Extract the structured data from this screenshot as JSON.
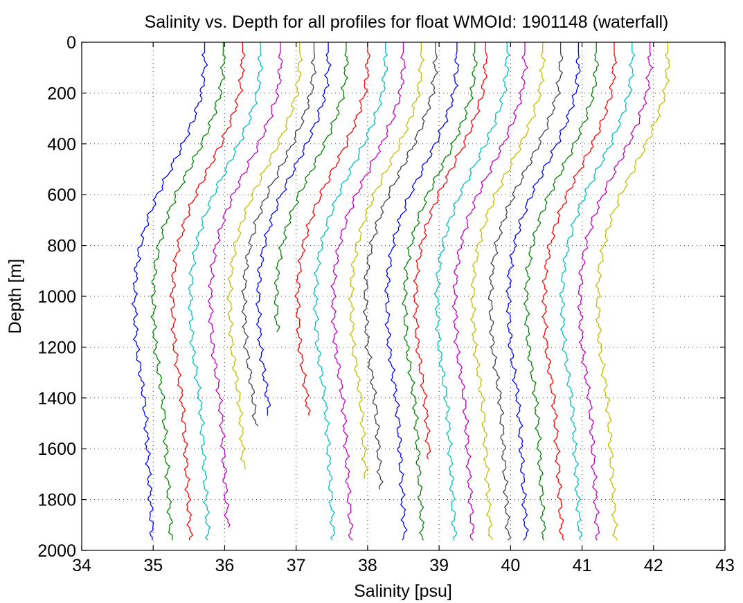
{
  "chart_data": {
    "type": "line",
    "title": "Salinity vs. Depth for all profiles for float WMOId: 1901148 (waterfall)",
    "xlabel": "Salinity [psu]",
    "ylabel": "Depth [m]",
    "xlim": [
      34,
      43
    ],
    "ylim": [
      0,
      2000
    ],
    "y_reversed": true,
    "grid": true,
    "x_ticks": [
      "34",
      "35",
      "36",
      "37",
      "38",
      "39",
      "40",
      "41",
      "42",
      "43"
    ],
    "y_ticks": [
      "0",
      "200",
      "400",
      "600",
      "800",
      "1000",
      "1200",
      "1400",
      "1600",
      "1800",
      "2000"
    ],
    "colors": [
      "#0000ff",
      "#008000",
      "#ff0000",
      "#00bfbf",
      "#bf00bf",
      "#bfbf00",
      "#404040"
    ],
    "profile_template": {
      "depth": [
        0,
        100,
        200,
        300,
        400,
        500,
        600,
        700,
        800,
        900,
        1000,
        1100,
        1200,
        1300,
        1400,
        1500,
        1600,
        1700,
        1800,
        1900,
        1960
      ],
      "offset": [
        0,
        0,
        -0.04,
        -0.15,
        -0.3,
        -0.48,
        -0.66,
        -0.8,
        -0.9,
        -0.96,
        -0.98,
        -0.97,
        -0.95,
        -0.9,
        -0.85,
        -0.82,
        -0.8,
        -0.78,
        -0.76,
        -0.74,
        -0.73
      ]
    },
    "series": [
      {
        "surface_salinity": 35.72,
        "max_depth": 1960,
        "color": "#0000ff"
      },
      {
        "surface_salinity": 35.98,
        "max_depth": 1960,
        "color": "#008000"
      },
      {
        "surface_salinity": 36.25,
        "max_depth": 1960,
        "color": "#ff0000"
      },
      {
        "surface_salinity": 36.5,
        "max_depth": 1960,
        "color": "#00bfbf"
      },
      {
        "surface_salinity": 36.78,
        "max_depth": 1910,
        "color": "#bf00bf"
      },
      {
        "surface_salinity": 37.05,
        "max_depth": 1680,
        "color": "#bfbf00"
      },
      {
        "surface_salinity": 37.25,
        "max_depth": 1510,
        "color": "#404040"
      },
      {
        "surface_salinity": 37.45,
        "max_depth": 1470,
        "color": "#0000ff"
      },
      {
        "surface_salinity": 37.7,
        "max_depth": 1140,
        "color": "#008000"
      },
      {
        "surface_salinity": 38.0,
        "max_depth": 1470,
        "color": "#ff0000"
      },
      {
        "surface_salinity": 38.25,
        "max_depth": 1960,
        "color": "#00bfbf"
      },
      {
        "surface_salinity": 38.5,
        "max_depth": 1960,
        "color": "#bf00bf"
      },
      {
        "surface_salinity": 38.75,
        "max_depth": 1720,
        "color": "#bfbf00"
      },
      {
        "surface_salinity": 38.95,
        "max_depth": 1760,
        "color": "#404040"
      },
      {
        "surface_salinity": 39.25,
        "max_depth": 1960,
        "color": "#0000ff"
      },
      {
        "surface_salinity": 39.5,
        "max_depth": 1960,
        "color": "#008000"
      },
      {
        "surface_salinity": 39.65,
        "max_depth": 1640,
        "color": "#ff0000"
      },
      {
        "surface_salinity": 39.95,
        "max_depth": 1960,
        "color": "#00bfbf"
      },
      {
        "surface_salinity": 40.2,
        "max_depth": 1960,
        "color": "#bf00bf"
      },
      {
        "surface_salinity": 40.45,
        "max_depth": 1960,
        "color": "#bfbf00"
      },
      {
        "surface_salinity": 40.7,
        "max_depth": 1960,
        "color": "#404040"
      },
      {
        "surface_salinity": 40.95,
        "max_depth": 1960,
        "color": "#0000ff"
      },
      {
        "surface_salinity": 41.2,
        "max_depth": 1960,
        "color": "#008000"
      },
      {
        "surface_salinity": 41.45,
        "max_depth": 1960,
        "color": "#ff0000"
      },
      {
        "surface_salinity": 41.7,
        "max_depth": 1960,
        "color": "#00bfbf"
      },
      {
        "surface_salinity": 41.95,
        "max_depth": 1960,
        "color": "#bf00bf"
      },
      {
        "surface_salinity": 42.2,
        "max_depth": 1960,
        "color": "#bfbf00"
      }
    ]
  }
}
